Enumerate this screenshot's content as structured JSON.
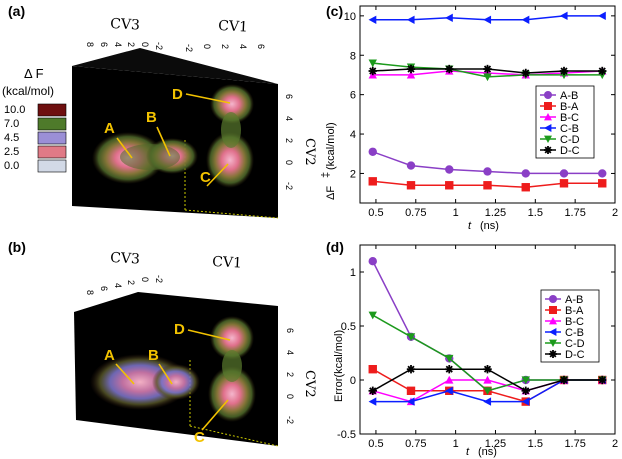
{
  "panels": {
    "a": {
      "label": "(a)"
    },
    "b": {
      "label": "(b)"
    },
    "c": {
      "label": "(c)"
    },
    "d": {
      "label": "(d)"
    }
  },
  "surface_axes": {
    "cv1": "CV1",
    "cv2": "CV2",
    "cv3": "CV3",
    "cv1_ticks": [
      "-2",
      "0",
      "2",
      "4",
      "6"
    ],
    "cv3_ticks": [
      "8",
      "6",
      "4",
      "2",
      "0",
      "-2"
    ],
    "cv2_ticks": [
      "6",
      "4",
      "2",
      "0",
      "-2"
    ]
  },
  "state_labels": [
    "A",
    "B",
    "C",
    "D"
  ],
  "colorbar": {
    "title_line1": "Δ F",
    "title_line2": "(kcal/mol)",
    "entries": [
      {
        "value": "10.0",
        "color": "#6e0f0f"
      },
      {
        "value": "7.0",
        "color": "#4e7a2a"
      },
      {
        "value": "4.5",
        "color": "#9b8fd6"
      },
      {
        "value": "2.5",
        "color": "#e07a86"
      },
      {
        "value": "0.0",
        "color": "#d2d9e6"
      }
    ]
  },
  "chart_data": [
    {
      "id": "c",
      "type": "line",
      "xlabel_var": "t",
      "xlabel_unit": "(ns)",
      "ylabel_var": "ΔF",
      "ylabel_sup": "‡",
      "ylabel_unit": "(kcal/mol)",
      "xlim": [
        0.4,
        2.0
      ],
      "ylim": [
        0.5,
        10.5
      ],
      "xticks": [
        0.5,
        0.75,
        1,
        1.25,
        1.5,
        1.75,
        2
      ],
      "xtick_labels": [
        "0.5",
        "0.75",
        "1",
        "1.25",
        "1.5",
        "1.75",
        "2"
      ],
      "yticks": [
        2,
        4,
        6,
        8,
        10
      ],
      "ytick_labels": [
        "2",
        "4",
        "6",
        "8",
        "10"
      ],
      "x": [
        0.48,
        0.72,
        0.96,
        1.2,
        1.44,
        1.68,
        1.92
      ],
      "series": [
        {
          "name": "A-B",
          "color": "#8a3fc6",
          "marker": "circle",
          "values": [
            3.1,
            2.4,
            2.2,
            2.1,
            2.0,
            2.0,
            2.0
          ]
        },
        {
          "name": "B-A",
          "color": "#ee1c1c",
          "marker": "square",
          "values": [
            1.6,
            1.4,
            1.4,
            1.4,
            1.3,
            1.5,
            1.5
          ]
        },
        {
          "name": "B-C",
          "color": "#ff00ff",
          "marker": "triangle-up",
          "values": [
            7.0,
            7.0,
            7.2,
            7.1,
            7.0,
            7.1,
            7.2
          ]
        },
        {
          "name": "C-B",
          "color": "#0b1fff",
          "marker": "triangle-left",
          "values": [
            9.8,
            9.8,
            9.9,
            9.8,
            9.8,
            10.0,
            10.0
          ]
        },
        {
          "name": "C-D",
          "color": "#1c9a1c",
          "marker": "triangle-down",
          "values": [
            7.6,
            7.4,
            7.3,
            6.9,
            7.0,
            7.0,
            7.0
          ]
        },
        {
          "name": "D-C",
          "color": "#000000",
          "marker": "star",
          "values": [
            7.2,
            7.3,
            7.3,
            7.3,
            7.1,
            7.2,
            7.2
          ]
        }
      ]
    },
    {
      "id": "d",
      "type": "line",
      "xlabel_var": "t",
      "xlabel_unit": "(ns)",
      "ylabel": "Error(kcal/mol)",
      "xlim": [
        0.4,
        2.0
      ],
      "ylim": [
        -0.5,
        1.25
      ],
      "xticks": [
        0.5,
        0.75,
        1,
        1.25,
        1.5,
        1.75,
        2
      ],
      "xtick_labels": [
        "0.5",
        "0.75",
        "1",
        "1.25",
        "1.5",
        "1.75",
        "2"
      ],
      "yticks": [
        -0.5,
        0,
        0.5,
        1
      ],
      "ytick_labels": [
        "-0.5",
        "0",
        "0.5",
        "1"
      ],
      "x": [
        0.48,
        0.72,
        0.96,
        1.2,
        1.44,
        1.68,
        1.92
      ],
      "series": [
        {
          "name": "A-B",
          "color": "#8a3fc6",
          "marker": "circle",
          "values": [
            1.1,
            0.4,
            0.2,
            -0.1,
            0.0,
            0.0,
            0.0
          ]
        },
        {
          "name": "B-A",
          "color": "#ee1c1c",
          "marker": "square",
          "values": [
            0.1,
            -0.1,
            -0.1,
            -0.1,
            -0.2,
            0.0,
            0.0
          ]
        },
        {
          "name": "B-C",
          "color": "#ff00ff",
          "marker": "triangle-up",
          "values": [
            -0.1,
            -0.2,
            0.0,
            0.0,
            -0.1,
            0.0,
            0.0
          ]
        },
        {
          "name": "C-B",
          "color": "#0b1fff",
          "marker": "triangle-left",
          "values": [
            -0.2,
            -0.2,
            -0.1,
            -0.2,
            -0.2,
            0.0,
            0.0
          ]
        },
        {
          "name": "C-D",
          "color": "#1c9a1c",
          "marker": "triangle-down",
          "values": [
            0.6,
            0.4,
            0.2,
            -0.1,
            0.0,
            0.0,
            0.0
          ]
        },
        {
          "name": "D-C",
          "color": "#000000",
          "marker": "star",
          "values": [
            -0.1,
            0.1,
            0.1,
            0.1,
            -0.1,
            0.0,
            0.0
          ]
        }
      ]
    }
  ]
}
